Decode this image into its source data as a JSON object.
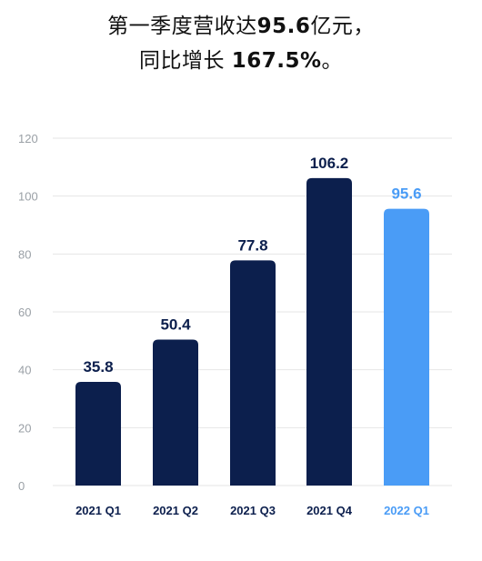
{
  "headline": {
    "line1_prefix": "第一季度营收达",
    "line1_value": "95.6",
    "line1_suffix": "亿元，",
    "line2_prefix": "同比增长 ",
    "line2_value": "167.5%",
    "line2_suffix": "。"
  },
  "chart_data": {
    "type": "bar",
    "title": "",
    "xlabel": "",
    "ylabel": "",
    "categories": [
      "2021 Q1",
      "2021 Q2",
      "2021 Q3",
      "2021 Q4",
      "2022 Q1"
    ],
    "values": [
      35.8,
      50.4,
      77.8,
      106.2,
      95.6
    ],
    "value_labels": [
      "35.8",
      "50.4",
      "77.8",
      "106.2",
      "95.6"
    ],
    "ylim": [
      0,
      120
    ],
    "yticks": [
      "0",
      "20",
      "40",
      "60",
      "80",
      "100",
      "120"
    ],
    "grid": true,
    "colors": {
      "bar": "#0c1f4d",
      "highlight_bar": "#4a9cf6",
      "highlight_index": 4,
      "grid": "#e6e6e6",
      "tick_text": "#9aa0a6",
      "category_text": "#0c1f4d"
    }
  }
}
